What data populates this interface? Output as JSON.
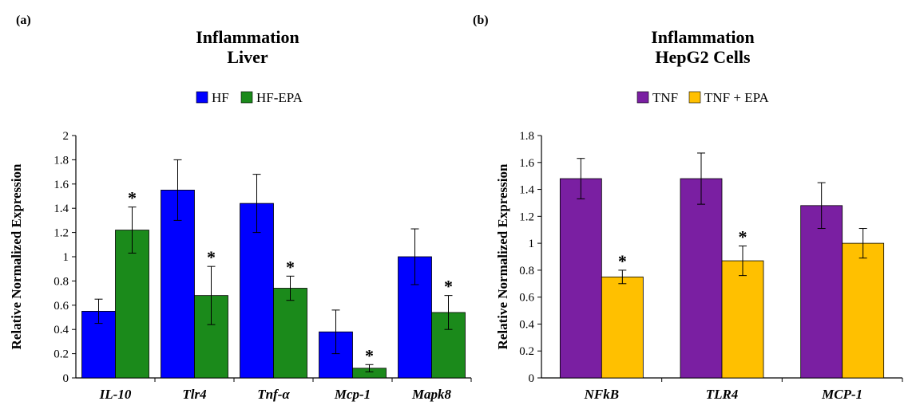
{
  "chart_data": [
    {
      "type": "bar",
      "panel_label": "(a)",
      "title": "Inflammation",
      "subtitle": "Liver",
      "xlabel": "",
      "ylabel": "Relative Normalized Expression",
      "ylim": [
        0,
        2
      ],
      "yticks": [
        "0",
        "0.2",
        "0.4",
        "0.6",
        "0.8",
        "1",
        "1.2",
        "1.4",
        "1.6",
        "1.8",
        "2"
      ],
      "categories": [
        "IL-10",
        "Tlr4",
        "Tnf-α",
        "Mcp-1",
        "Mapk8"
      ],
      "series": [
        {
          "name": "HF",
          "color": "#0000ff",
          "values": [
            0.55,
            1.55,
            1.44,
            0.38,
            1.0
          ],
          "errors": [
            0.1,
            0.25,
            0.24,
            0.18,
            0.23
          ],
          "significant": [
            false,
            false,
            false,
            false,
            false
          ]
        },
        {
          "name": "HF-EPA",
          "color": "#1b8a1b",
          "values": [
            1.22,
            0.68,
            0.74,
            0.08,
            0.54
          ],
          "errors": [
            0.19,
            0.24,
            0.1,
            0.03,
            0.14
          ],
          "significant": [
            true,
            true,
            true,
            true,
            true
          ]
        }
      ],
      "legend_position": "top-center",
      "significance_marker": "*",
      "grid": false
    },
    {
      "type": "bar",
      "panel_label": "(b)",
      "title": "Inflammation",
      "subtitle": "HepG2 Cells",
      "xlabel": "",
      "ylabel": "Relative Normalized Expression",
      "ylim": [
        0,
        1.8
      ],
      "yticks": [
        "0",
        "0.2",
        "0.4",
        "0.6",
        "0.8",
        "1",
        "1.2",
        "1.4",
        "1.6",
        "1.8"
      ],
      "categories": [
        "NFkB",
        "TLR4",
        "MCP-1"
      ],
      "series": [
        {
          "name": "TNF",
          "color": "#7a1fa2",
          "values": [
            1.48,
            1.48,
            1.28
          ],
          "errors": [
            0.15,
            0.19,
            0.17
          ],
          "significant": [
            false,
            false,
            false
          ]
        },
        {
          "name": "TNF + EPA",
          "color": "#ffc000",
          "values": [
            0.75,
            0.87,
            1.0
          ],
          "errors": [
            0.05,
            0.11,
            0.11
          ],
          "significant": [
            true,
            true,
            false
          ]
        }
      ],
      "legend_position": "top-center",
      "significance_marker": "*",
      "grid": false
    }
  ]
}
